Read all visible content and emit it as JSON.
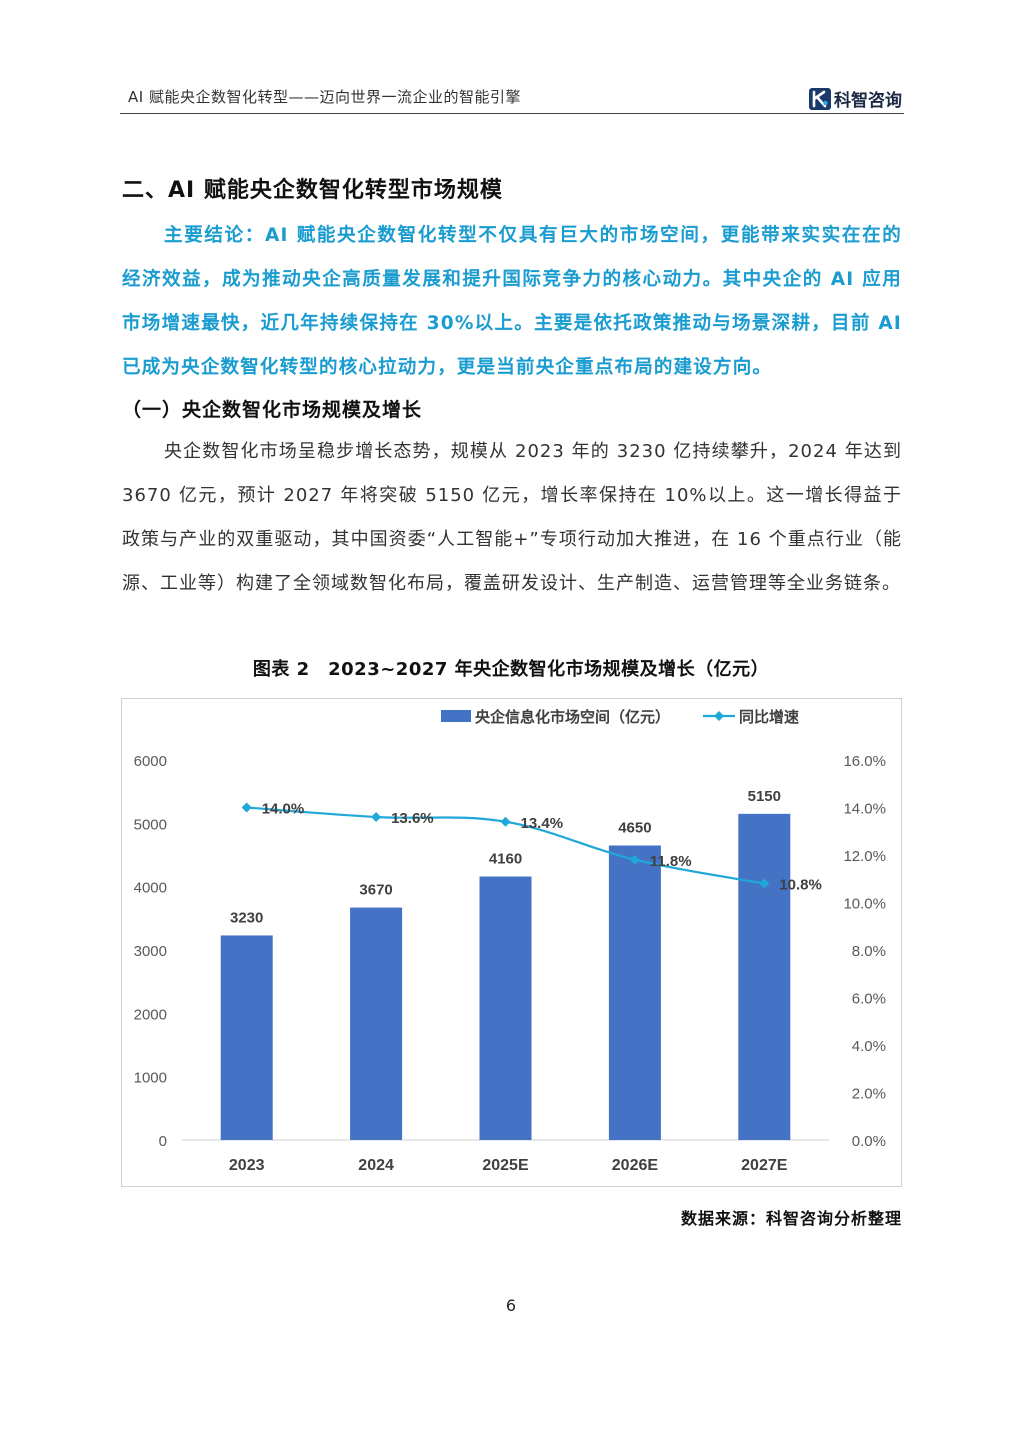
{
  "header": {
    "running_title": "AI 赋能央企数智化转型——迈向世界一流企业的智能引擎",
    "logo_text": "科智咨询"
  },
  "section_title": "二、AI 赋能央企数智化转型市场规模",
  "conclusion": "主要结论：AI 赋能央企数智化转型不仅具有巨大的市场空间，更能带来实实在在的经济效益，成为推动央企高质量发展和提升国际竞争力的核心动力。其中央企的 AI 应用市场增速最快，近几年持续保持在 30%以上。主要是依托政策推动与场景深耕，目前 AI 已成为央企数智化转型的核心拉动力，更是当前央企重点布局的建设方向。",
  "subsection_title": "（一）央企数智化市场规模及增长",
  "body_paragraph": "央企数智化市场呈稳步增长态势，规模从 2023 年的 3230 亿持续攀升，2024 年达到 3670 亿元，预计 2027 年将突破 5150 亿元，增长率保持在 10%以上。这一增长得益于政策与产业的双重驱动，其中国资委“人工智能+”专项行动加大推进，在 16 个重点行业（能源、工业等）构建了全领域数智化布局，覆盖研发设计、生产制造、运营管理等全业务链条。",
  "figure_caption": "图表 2　2023~2027 年央企数智化市场规模及增长（亿元）",
  "source": "数据来源：科智咨询分析整理",
  "page_number": "6",
  "chart_data": {
    "type": "bar",
    "categories": [
      "2023",
      "2024",
      "2025E",
      "2026E",
      "2027E"
    ],
    "series": [
      {
        "name": "央企信息化市场空间（亿元）",
        "type": "bar",
        "axis": "left",
        "color": "#4472c4",
        "values": [
          3230,
          3670,
          4160,
          4650,
          5150
        ]
      },
      {
        "name": "同比增速",
        "type": "line",
        "axis": "right",
        "color": "#1fa8d8",
        "values": [
          14.0,
          13.6,
          13.4,
          11.8,
          10.8
        ]
      }
    ],
    "left_ticks": [
      "0",
      "1000",
      "2000",
      "3000",
      "4000",
      "5000",
      "6000"
    ],
    "right_ticks": [
      "0.0%",
      "2.0%",
      "4.0%",
      "6.0%",
      "8.0%",
      "10.0%",
      "12.0%",
      "14.0%",
      "16.0%"
    ],
    "ylim_left": [
      0,
      6000
    ],
    "ylim_right": [
      0,
      16
    ],
    "bar_labels": [
      "3230",
      "3670",
      "4160",
      "4650",
      "5150"
    ],
    "line_labels": [
      "14.0%",
      "13.6%",
      "13.4%",
      "11.8%",
      "10.8%"
    ],
    "legend_position": "top",
    "grid": false
  }
}
